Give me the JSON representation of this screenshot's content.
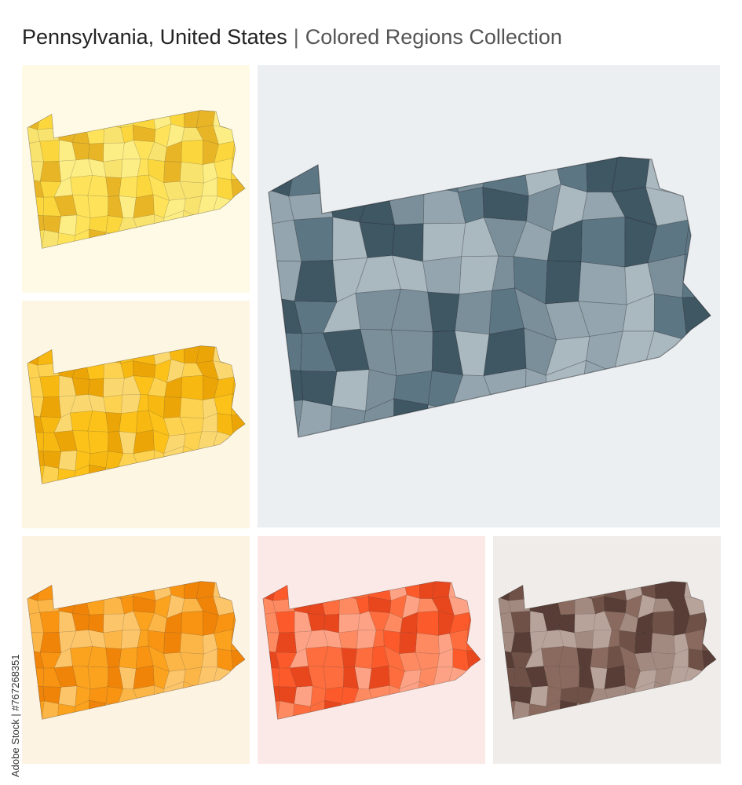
{
  "header": {
    "title": "Pennsylvania, United States",
    "separator": "|",
    "subtitle": "Colored Regions Collection"
  },
  "side_note": "Adobe Stock | #767268351"
}
